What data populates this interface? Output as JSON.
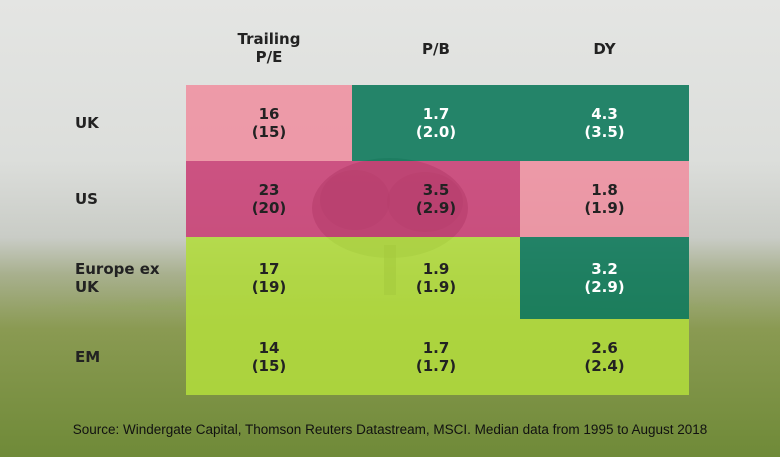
{
  "chart_data": {
    "type": "table",
    "columns": [
      "Trailing\nP/E",
      "P/B",
      "DY"
    ],
    "rows": [
      {
        "label": "UK",
        "cells": [
          {
            "value": "16",
            "median": "(15)",
            "color": "pink"
          },
          {
            "value": "1.7",
            "median": "(2.0)",
            "color": "teal"
          },
          {
            "value": "4.3",
            "median": "(3.5)",
            "color": "teal"
          }
        ]
      },
      {
        "label": "US",
        "cells": [
          {
            "value": "23",
            "median": "(20)",
            "color": "magenta"
          },
          {
            "value": "3.5",
            "median": "(2.9)",
            "color": "magenta"
          },
          {
            "value": "1.8",
            "median": "(1.9)",
            "color": "pink"
          }
        ]
      },
      {
        "label": "Europe ex\nUK",
        "cells": [
          {
            "value": "17",
            "median": "(19)",
            "color": "green"
          },
          {
            "value": "1.9",
            "median": "(1.9)",
            "color": "green"
          },
          {
            "value": "3.2",
            "median": "(2.9)",
            "color": "teal"
          }
        ]
      },
      {
        "label": "EM",
        "cells": [
          {
            "value": "14",
            "median": "(15)",
            "color": "green"
          },
          {
            "value": "1.7",
            "median": "(1.7)",
            "color": "green"
          },
          {
            "value": "2.6",
            "median": "(2.4)",
            "color": "green"
          }
        ]
      }
    ],
    "palette": {
      "pink": "#f08a9c",
      "magenta": "#c8336e",
      "teal": "#0f7a5c",
      "green": "#b2dc3c"
    },
    "source": "Source: Windergate Capital, Thomson Reuters Datastream, MSCI. Median data from 1995 to August 2018"
  }
}
